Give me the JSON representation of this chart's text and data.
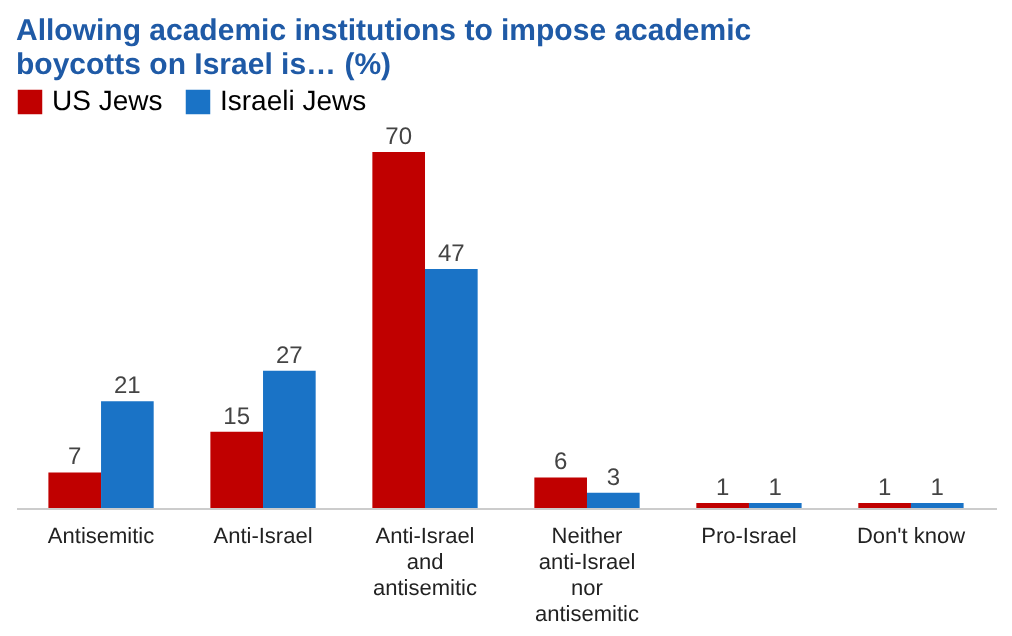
{
  "chart_data": {
    "type": "bar",
    "title": "Allowing academic institutions to impose academic boycotts on Israel is… (%)",
    "categories": [
      "Antisemitic",
      "Anti-Israel",
      "Anti-Israel and antisemitic",
      "Neither anti-Israel nor antisemitic",
      "Pro-Israel",
      "Don't know"
    ],
    "series": [
      {
        "name": "US Jews",
        "color": "#c00000",
        "values": [
          7,
          15,
          70,
          6,
          1,
          1
        ]
      },
      {
        "name": "Israeli Jews",
        "color": "#1a73c6",
        "values": [
          21,
          27,
          47,
          3,
          1,
          1
        ]
      }
    ],
    "data_labels": true,
    "legend": "top",
    "grid": false
  }
}
